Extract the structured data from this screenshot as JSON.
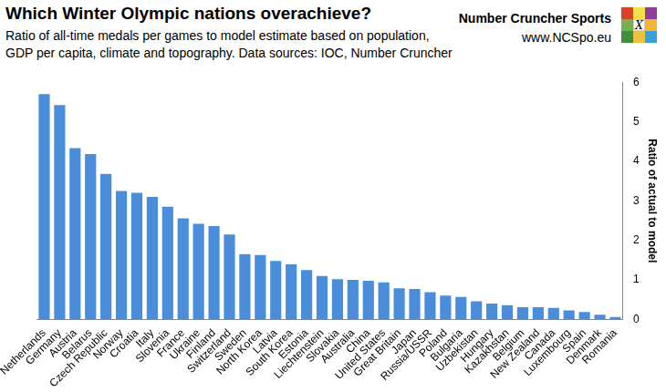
{
  "chart_data": {
    "type": "bar",
    "title": "Which Winter Olympic nations overachieve?",
    "subtitle": [
      "Ratio of all-time medals per games to model estimate based on population,",
      "GDP per capita, climate and topography. Data sources: IOC, Number Cruncher"
    ],
    "brand": [
      "Number Cruncher Sports",
      "www.NCSpo.eu"
    ],
    "logo_mark": "X",
    "y_label": "Ratio of actual to model",
    "categories": [
      "Netherlands",
      "Germany",
      "Austria",
      "Belarus",
      "Czech Republic",
      "Norway",
      "Croatia",
      "Italy",
      "Slovenia",
      "France",
      "Ukraine",
      "Finland",
      "Switzerland",
      "Sweden",
      "North Korea",
      "Latvia",
      "South Korea",
      "Estonia",
      "Liechtenstein",
      "Slovakia",
      "Australia",
      "China",
      "United States",
      "Great Britain",
      "Japan",
      "Russia/USSR",
      "Poland",
      "Bulgaria",
      "Uzbekistan",
      "Hungary",
      "Kazakhstan",
      "Belgium",
      "New Zealand",
      "Canada",
      "Luxembourg",
      "Spain",
      "Denmark",
      "Romania"
    ],
    "values": [
      5.7,
      5.42,
      4.33,
      4.18,
      3.68,
      3.25,
      3.2,
      3.1,
      2.85,
      2.56,
      2.42,
      2.36,
      2.15,
      1.65,
      1.63,
      1.48,
      1.39,
      1.25,
      1.1,
      1.02,
      1.0,
      0.98,
      0.94,
      0.79,
      0.77,
      0.69,
      0.6,
      0.57,
      0.46,
      0.4,
      0.36,
      0.31,
      0.31,
      0.29,
      0.23,
      0.19,
      0.12,
      0.06
    ],
    "color": "#4a8edb",
    "ylim": [
      0,
      6
    ],
    "yticks": [
      0,
      1,
      2,
      3,
      4,
      5,
      6
    ],
    "grid": false
  }
}
